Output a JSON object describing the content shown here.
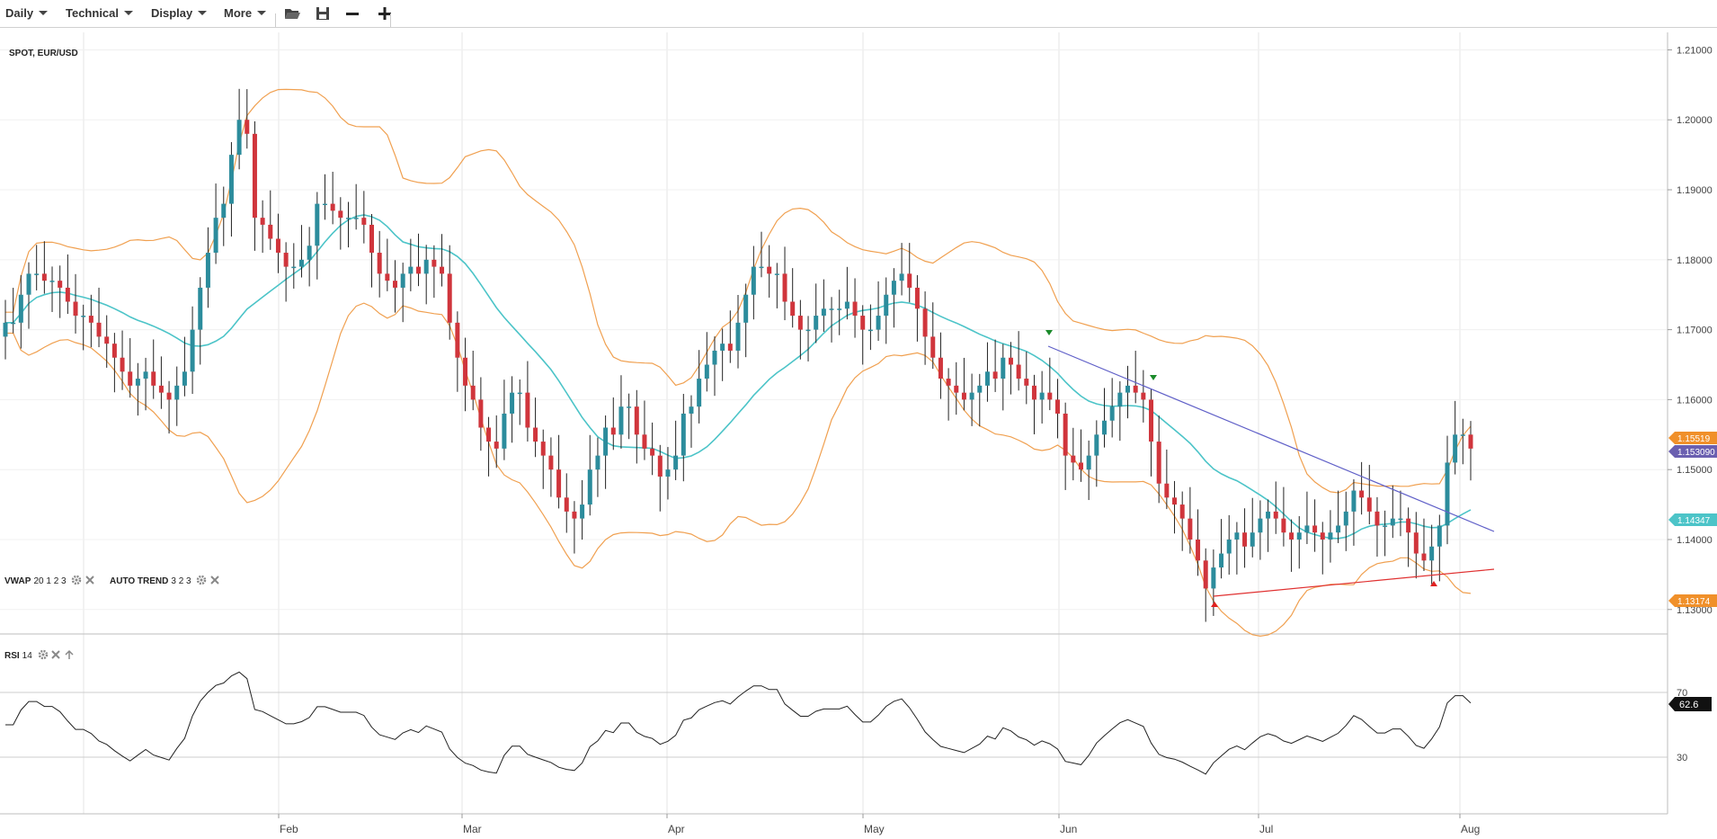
{
  "toolbar": {
    "menus": [
      "Daily",
      "Technical",
      "Display",
      "More"
    ],
    "icons": [
      "folder-open-icon",
      "save-icon",
      "zoom-out-icon",
      "zoom-in-icon"
    ]
  },
  "instrument": {
    "label": "SPOT, EUR/USD"
  },
  "indicators": {
    "vwap": {
      "name": "VWAP",
      "params": "20 1 2 3"
    },
    "auto_trend": {
      "name": "AUTO TREND",
      "params": "3 2 3"
    },
    "rsi": {
      "name": "RSI",
      "params": "14"
    }
  },
  "colors": {
    "up_candle": "#2c8c9c",
    "down_candle": "#d0353c",
    "bollinger": "#f0a050",
    "middle_band": "#4cc4c8",
    "trend_down": "#6060c8",
    "trend_up": "#e03030",
    "rsi_line": "#222222",
    "grid": "#e5e5e5"
  },
  "chart_data": {
    "type": "candlestick",
    "title": "SPOT, EUR/USD",
    "x_labels": [
      "Feb",
      "Mar",
      "Apr",
      "May",
      "Jun",
      "Jul",
      "Aug"
    ],
    "y_ticks": [
      "1.21000",
      "1.20000",
      "1.19000",
      "1.18000",
      "1.17000",
      "1.16000",
      "1.15000",
      "1.14000",
      "1.13000"
    ],
    "ylim": [
      1.1265,
      1.2125
    ],
    "price_tags": [
      {
        "value": "1.15519",
        "color": "#f0902a"
      },
      {
        "value": "1.153090",
        "color": "#6a5fb0"
      },
      {
        "value": "1.14347",
        "color": "#4cc4c8"
      },
      {
        "value": "1.13174",
        "color": "#f0902a"
      }
    ],
    "close_series": [
      1.171,
      1.171,
      1.175,
      1.178,
      1.178,
      1.177,
      1.177,
      1.176,
      1.174,
      1.172,
      1.172,
      1.171,
      1.169,
      1.168,
      1.166,
      1.164,
      1.162,
      1.163,
      1.164,
      1.162,
      1.161,
      1.16,
      1.162,
      1.164,
      1.17,
      1.176,
      1.181,
      1.186,
      1.188,
      1.195,
      1.2,
      1.198,
      1.186,
      1.185,
      1.183,
      1.181,
      1.179,
      1.179,
      1.18,
      1.182,
      1.188,
      1.188,
      1.187,
      1.186,
      1.186,
      1.186,
      1.185,
      1.181,
      1.178,
      1.177,
      1.176,
      1.178,
      1.179,
      1.178,
      1.18,
      1.179,
      1.178,
      1.171,
      1.166,
      1.162,
      1.16,
      1.156,
      1.154,
      1.153,
      1.158,
      1.161,
      1.161,
      1.156,
      1.154,
      1.152,
      1.15,
      1.146,
      1.144,
      1.143,
      1.145,
      1.15,
      1.152,
      1.156,
      1.155,
      1.159,
      1.159,
      1.155,
      1.153,
      1.152,
      1.149,
      1.15,
      1.152,
      1.158,
      1.159,
      1.163,
      1.165,
      1.167,
      1.168,
      1.167,
      1.171,
      1.175,
      1.179,
      1.179,
      1.178,
      1.178,
      1.174,
      1.172,
      1.17,
      1.17,
      1.172,
      1.173,
      1.173,
      1.173,
      1.174,
      1.172,
      1.17,
      1.17,
      1.172,
      1.175,
      1.177,
      1.178,
      1.176,
      1.173,
      1.169,
      1.166,
      1.163,
      1.162,
      1.161,
      1.16,
      1.161,
      1.162,
      1.164,
      1.163,
      1.166,
      1.165,
      1.163,
      1.162,
      1.16,
      1.161,
      1.16,
      1.158,
      1.152,
      1.151,
      1.15,
      1.152,
      1.155,
      1.157,
      1.159,
      1.161,
      1.162,
      1.161,
      1.16,
      1.154,
      1.148,
      1.146,
      1.145,
      1.143,
      1.14,
      1.137,
      1.133,
      1.136,
      1.138,
      1.14,
      1.141,
      1.139,
      1.141,
      1.143,
      1.144,
      1.143,
      1.141,
      1.14,
      1.141,
      1.142,
      1.141,
      1.14,
      1.141,
      1.142,
      1.144,
      1.147,
      1.146,
      1.144,
      1.142,
      1.142,
      1.143,
      1.143,
      1.141,
      1.138,
      1.137,
      1.139,
      1.142,
      1.151,
      1.155,
      1.155,
      1.153
    ],
    "rsi": {
      "levels": [
        70,
        30
      ],
      "last_value": "62.6"
    }
  }
}
